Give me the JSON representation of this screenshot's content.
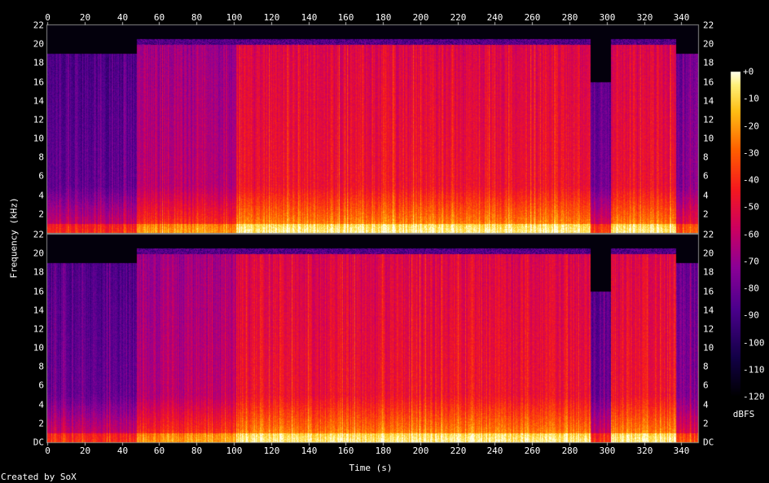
{
  "chart_data": {
    "type": "heatmap",
    "title": "",
    "xlabel": "Time (s)",
    "ylabel": "Frequency (kHz)",
    "xlim": [
      0,
      349
    ],
    "ylim": [
      0,
      22
    ],
    "x_ticks": [
      0,
      20,
      40,
      60,
      80,
      100,
      120,
      140,
      160,
      180,
      200,
      220,
      240,
      260,
      280,
      300,
      320,
      340
    ],
    "y_ticks_top": [
      "2",
      "4",
      "6",
      "8",
      "10",
      "12",
      "14",
      "16",
      "18",
      "20",
      "22"
    ],
    "y_ticks_bottom": [
      "DC",
      "2",
      "4",
      "6",
      "8",
      "10",
      "12",
      "14",
      "16",
      "18",
      "20",
      "22"
    ],
    "channels": 2,
    "colorbar": {
      "label": "dBFS",
      "ticks": [
        "+0",
        "-10",
        "-20",
        "-30",
        "-40",
        "-50",
        "-60",
        "-70",
        "-80",
        "-90",
        "-100",
        "-110",
        "-120"
      ],
      "range": [
        -120,
        0
      ]
    },
    "segments": [
      {
        "start": 0,
        "end": 48,
        "cutoff_khz": 19,
        "level": "low"
      },
      {
        "start": 48,
        "end": 101,
        "cutoff_khz": 20,
        "level": "mid"
      },
      {
        "start": 101,
        "end": 291,
        "cutoff_khz": 20,
        "level": "high"
      },
      {
        "start": 291,
        "end": 302,
        "cutoff_khz": 16,
        "level": "dip"
      },
      {
        "start": 302,
        "end": 337,
        "cutoff_khz": 20,
        "level": "high"
      },
      {
        "start": 337,
        "end": 349,
        "cutoff_khz": 19,
        "level": "fade"
      }
    ]
  },
  "footer": {
    "credit": "Created by SoX"
  }
}
